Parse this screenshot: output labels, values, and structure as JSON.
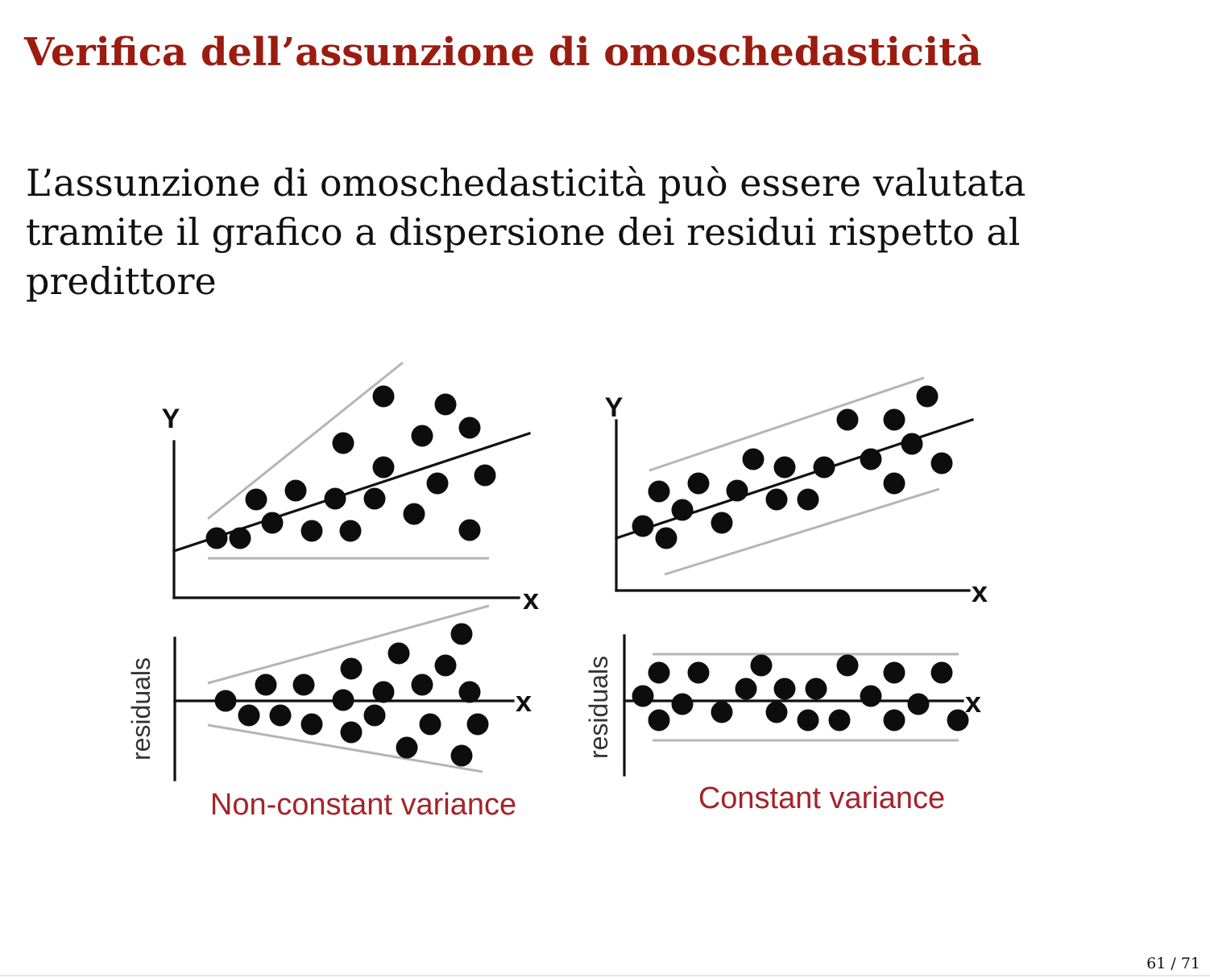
{
  "slide": {
    "title": "Verifica dell’assunzione di omoschedasticità",
    "body_lines": [
      "L’assunzione di omoschedasticità può essere valutata",
      "tramite il grafico a dispersione dei residui rispetto al",
      "predittore"
    ],
    "page_number": "61 / 71"
  },
  "figure": {
    "panels": {
      "nonconstant_scatter": {
        "y_label": "Y",
        "x_label": "x"
      },
      "constant_scatter": {
        "y_label": "Y",
        "x_label": "x"
      },
      "nonconstant_residuals": {
        "y_label": "residuals",
        "x_label": "x"
      },
      "constant_residuals": {
        "y_label": "residuals",
        "x_label": "x"
      }
    },
    "captions": {
      "left": "Non-constant variance",
      "right": "Constant variance"
    }
  },
  "colors": {
    "title": "#9b1c10",
    "caption": "#a5232a",
    "bound_line": "#b5b5b5",
    "points": "#0d0d0d"
  }
}
